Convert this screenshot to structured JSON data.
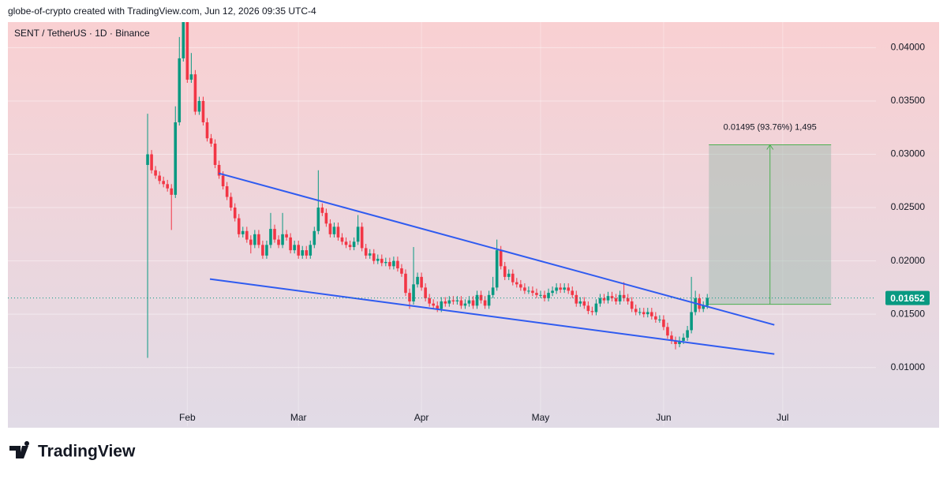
{
  "header": {
    "credit": "globe-of-crypto created with TradingView.com, Jun 12, 2026 09:35 UTC-4"
  },
  "footer": {
    "brand": "TradingView"
  },
  "chart_data": {
    "type": "candlestick",
    "title": "SENT / TetherUS · 1D · Binance",
    "up_color": "#089981",
    "down_color": "#f23645",
    "x": [
      0,
      1,
      2,
      3,
      4,
      5,
      6,
      7,
      8,
      9,
      10,
      11,
      12,
      13,
      14,
      15,
      16,
      17,
      18,
      19,
      20,
      21,
      22,
      23,
      24,
      25,
      26,
      27,
      28,
      29,
      30,
      31,
      32,
      33,
      34,
      35,
      36,
      37,
      38,
      39,
      40,
      41,
      42,
      43,
      44,
      45,
      46,
      47,
      48,
      49,
      50,
      51,
      52,
      53,
      54,
      55,
      56,
      57,
      58,
      59,
      60,
      61,
      62,
      63,
      64,
      65,
      66,
      67,
      68,
      69,
      70,
      71,
      72,
      73,
      74,
      75,
      76,
      77,
      78,
      79,
      80,
      81,
      82,
      83,
      84,
      85,
      86,
      87,
      88,
      89,
      90,
      91,
      92,
      93,
      94,
      95,
      96,
      97,
      98,
      99,
      100,
      101,
      102,
      103,
      104,
      105,
      106,
      107,
      108,
      109,
      110,
      111,
      112,
      113,
      114,
      115,
      116,
      117,
      118,
      119,
      120,
      121,
      122,
      123,
      124,
      125,
      126,
      127,
      128,
      129,
      130,
      131,
      132,
      133,
      134,
      135,
      136,
      137,
      138,
      139,
      140,
      141
    ],
    "open": [
      0.029,
      0.03,
      0.0285,
      0.028,
      0.0275,
      0.0272,
      0.0268,
      0.0262,
      0.033,
      0.039,
      0.0425,
      0.037,
      0.0375,
      0.034,
      0.035,
      0.033,
      0.0315,
      0.031,
      0.029,
      0.028,
      0.027,
      0.026,
      0.025,
      0.024,
      0.0225,
      0.0228,
      0.022,
      0.0215,
      0.0225,
      0.0215,
      0.0205,
      0.0215,
      0.023,
      0.022,
      0.0215,
      0.0225,
      0.0222,
      0.021,
      0.0215,
      0.0205,
      0.021,
      0.0205,
      0.0215,
      0.0228,
      0.025,
      0.0245,
      0.0235,
      0.0225,
      0.0232,
      0.0222,
      0.0218,
      0.0215,
      0.0213,
      0.0218,
      0.0232,
      0.0212,
      0.0205,
      0.0207,
      0.02,
      0.0202,
      0.0198,
      0.0199,
      0.0195,
      0.02,
      0.0193,
      0.0188,
      0.017,
      0.0162,
      0.0178,
      0.0185,
      0.0175,
      0.0165,
      0.016,
      0.0158,
      0.0155,
      0.0162,
      0.016,
      0.0163,
      0.0162,
      0.0163,
      0.0158,
      0.016,
      0.0163,
      0.0158,
      0.0168,
      0.0163,
      0.0158,
      0.0168,
      0.0175,
      0.021,
      0.0195,
      0.0185,
      0.0188,
      0.018,
      0.0178,
      0.0175,
      0.0172,
      0.0172,
      0.017,
      0.0168,
      0.0168,
      0.0165,
      0.017,
      0.0172,
      0.0175,
      0.0173,
      0.0175,
      0.0172,
      0.0168,
      0.016,
      0.0162,
      0.0158,
      0.0153,
      0.0152,
      0.016,
      0.0165,
      0.0163,
      0.0167,
      0.0165,
      0.0162,
      0.0168,
      0.0165,
      0.0162,
      0.0155,
      0.0152,
      0.0152,
      0.015,
      0.0152,
      0.0148,
      0.0145,
      0.0145,
      0.0138,
      0.013,
      0.0125,
      0.0122,
      0.0125,
      0.0128,
      0.0135,
      0.0152,
      0.0165,
      0.0155,
      0.0158
    ],
    "high": [
      0.0338,
      0.0304,
      0.0289,
      0.0284,
      0.0279,
      0.0276,
      0.0272,
      0.0345,
      0.041,
      0.043,
      0.043,
      0.0395,
      0.0379,
      0.0354,
      0.0354,
      0.0334,
      0.0319,
      0.0314,
      0.0294,
      0.0284,
      0.0274,
      0.0264,
      0.0254,
      0.0244,
      0.0232,
      0.0232,
      0.0224,
      0.0229,
      0.0229,
      0.0219,
      0.0219,
      0.0245,
      0.0234,
      0.0224,
      0.0245,
      0.0229,
      0.0226,
      0.0219,
      0.0219,
      0.0214,
      0.0214,
      0.0219,
      0.0232,
      0.0285,
      0.0254,
      0.0249,
      0.0239,
      0.0236,
      0.0236,
      0.0226,
      0.0222,
      0.0219,
      0.0222,
      0.0243,
      0.0236,
      0.0216,
      0.0211,
      0.0211,
      0.0206,
      0.0206,
      0.0203,
      0.0203,
      0.0204,
      0.0204,
      0.0197,
      0.0192,
      0.0174,
      0.0213,
      0.0189,
      0.0189,
      0.0179,
      0.0169,
      0.0164,
      0.0162,
      0.0166,
      0.0166,
      0.0167,
      0.0167,
      0.0167,
      0.0167,
      0.0164,
      0.0167,
      0.0167,
      0.0172,
      0.0172,
      0.0167,
      0.0172,
      0.0185,
      0.022,
      0.0214,
      0.0199,
      0.0192,
      0.0192,
      0.0184,
      0.0182,
      0.0179,
      0.0176,
      0.0176,
      0.0174,
      0.0172,
      0.0172,
      0.0174,
      0.0176,
      0.0179,
      0.0179,
      0.0179,
      0.0179,
      0.0176,
      0.0172,
      0.0166,
      0.0166,
      0.0162,
      0.0157,
      0.0164,
      0.0169,
      0.0169,
      0.0171,
      0.0171,
      0.0169,
      0.0172,
      0.018,
      0.0169,
      0.0166,
      0.0159,
      0.0156,
      0.0156,
      0.0156,
      0.0156,
      0.0152,
      0.0149,
      0.0149,
      0.0142,
      0.0134,
      0.0129,
      0.0129,
      0.0132,
      0.0139,
      0.0185,
      0.0172,
      0.0169,
      0.0162,
      0.0169
    ],
    "low": [
      0.0109,
      0.0282,
      0.0277,
      0.0272,
      0.0269,
      0.0265,
      0.0229,
      0.0259,
      0.0327,
      0.0387,
      0.0367,
      0.0367,
      0.0337,
      0.0337,
      0.0327,
      0.0312,
      0.0307,
      0.0287,
      0.0277,
      0.0267,
      0.0257,
      0.0247,
      0.0237,
      0.0222,
      0.0222,
      0.0217,
      0.0207,
      0.0212,
      0.0212,
      0.0202,
      0.0202,
      0.0212,
      0.0217,
      0.0212,
      0.0212,
      0.0219,
      0.0207,
      0.0207,
      0.0202,
      0.0202,
      0.0202,
      0.0202,
      0.0212,
      0.0225,
      0.0242,
      0.0232,
      0.0222,
      0.0222,
      0.0219,
      0.0215,
      0.0212,
      0.021,
      0.021,
      0.0215,
      0.0209,
      0.0202,
      0.0202,
      0.0197,
      0.0197,
      0.0195,
      0.0195,
      0.0192,
      0.0192,
      0.019,
      0.0185,
      0.0167,
      0.0155,
      0.0159,
      0.0175,
      0.0172,
      0.0162,
      0.0157,
      0.0155,
      0.0152,
      0.0152,
      0.0157,
      0.0157,
      0.0159,
      0.0159,
      0.0155,
      0.0155,
      0.0157,
      0.0155,
      0.0155,
      0.016,
      0.0155,
      0.0155,
      0.0165,
      0.0172,
      0.0192,
      0.0182,
      0.0182,
      0.0177,
      0.0175,
      0.0172,
      0.0169,
      0.0169,
      0.0167,
      0.0165,
      0.0165,
      0.0162,
      0.0162,
      0.0167,
      0.0169,
      0.017,
      0.017,
      0.0169,
      0.0165,
      0.0157,
      0.0157,
      0.0155,
      0.015,
      0.0149,
      0.0149,
      0.0157,
      0.016,
      0.016,
      0.0162,
      0.0159,
      0.0159,
      0.0162,
      0.0159,
      0.0152,
      0.0149,
      0.0149,
      0.0147,
      0.0147,
      0.0145,
      0.0142,
      0.0142,
      0.0135,
      0.0127,
      0.0122,
      0.0117,
      0.0119,
      0.0122,
      0.0125,
      0.0132,
      0.0149,
      0.0152,
      0.0152,
      0.0155
    ],
    "close": [
      0.03,
      0.0285,
      0.028,
      0.0275,
      0.0272,
      0.0268,
      0.0262,
      0.033,
      0.039,
      0.0425,
      0.037,
      0.0375,
      0.034,
      0.035,
      0.033,
      0.0315,
      0.031,
      0.029,
      0.028,
      0.027,
      0.026,
      0.025,
      0.024,
      0.0225,
      0.0228,
      0.022,
      0.0215,
      0.0225,
      0.0215,
      0.0205,
      0.0215,
      0.023,
      0.022,
      0.0215,
      0.0225,
      0.0222,
      0.021,
      0.0215,
      0.0205,
      0.021,
      0.0205,
      0.0215,
      0.0228,
      0.025,
      0.0245,
      0.0235,
      0.0225,
      0.0232,
      0.0222,
      0.0218,
      0.0215,
      0.0213,
      0.0218,
      0.0232,
      0.0212,
      0.0205,
      0.0207,
      0.02,
      0.0202,
      0.0198,
      0.0199,
      0.0195,
      0.02,
      0.0193,
      0.0188,
      0.017,
      0.0162,
      0.0178,
      0.0185,
      0.0175,
      0.0165,
      0.016,
      0.0158,
      0.0155,
      0.0162,
      0.016,
      0.0163,
      0.0162,
      0.0163,
      0.0158,
      0.016,
      0.0163,
      0.0158,
      0.0168,
      0.0163,
      0.0158,
      0.0168,
      0.0175,
      0.021,
      0.0195,
      0.0185,
      0.0188,
      0.018,
      0.0178,
      0.0175,
      0.0172,
      0.0172,
      0.017,
      0.0168,
      0.0168,
      0.0165,
      0.017,
      0.0172,
      0.0175,
      0.0173,
      0.0175,
      0.0172,
      0.0168,
      0.016,
      0.0162,
      0.0158,
      0.0153,
      0.0152,
      0.016,
      0.0165,
      0.0163,
      0.0167,
      0.0165,
      0.0162,
      0.0168,
      0.0165,
      0.0162,
      0.0155,
      0.0152,
      0.0152,
      0.015,
      0.0152,
      0.0148,
      0.0145,
      0.0145,
      0.0138,
      0.013,
      0.0125,
      0.0122,
      0.0125,
      0.0128,
      0.0135,
      0.0152,
      0.0165,
      0.0155,
      0.0158,
      0.01652
    ],
    "xlim": [
      -35.2,
      183.5
    ],
    "ylim": [
      0.0045,
      0.0424
    ],
    "xticks": [
      {
        "value": 10,
        "label": "Feb"
      },
      {
        "value": 38,
        "label": "Mar"
      },
      {
        "value": 69,
        "label": "Apr"
      },
      {
        "value": 99,
        "label": "May"
      },
      {
        "value": 130,
        "label": "Jun"
      },
      {
        "value": 160,
        "label": "Jul"
      }
    ],
    "yticks": [
      {
        "value": 0.01,
        "label": "0.01000"
      },
      {
        "value": 0.015,
        "label": "0.01500"
      },
      {
        "value": 0.02,
        "label": "0.02000"
      },
      {
        "value": 0.025,
        "label": "0.02500"
      },
      {
        "value": 0.03,
        "label": "0.03000"
      },
      {
        "value": 0.035,
        "label": "0.03500"
      },
      {
        "value": 0.04,
        "label": "0.04000"
      }
    ],
    "grid": true,
    "trendlines": [
      {
        "color": "#2f5bf0",
        "x": [
          17.9,
          157.9
        ],
        "y": [
          0.02822,
          0.014
        ]
      },
      {
        "color": "#2f5bf0",
        "x": [
          15.7,
          157.9
        ],
        "y": [
          0.0183,
          0.01126
        ]
      }
    ],
    "measure": {
      "label": "0.01495 (93.76%) 1,495",
      "x": [
        141.4,
        172.2
      ],
      "y": [
        0.01593,
        0.03089
      ]
    },
    "last_price": {
      "value": 0.01652,
      "label": "0.01652",
      "color": "#089981"
    }
  }
}
